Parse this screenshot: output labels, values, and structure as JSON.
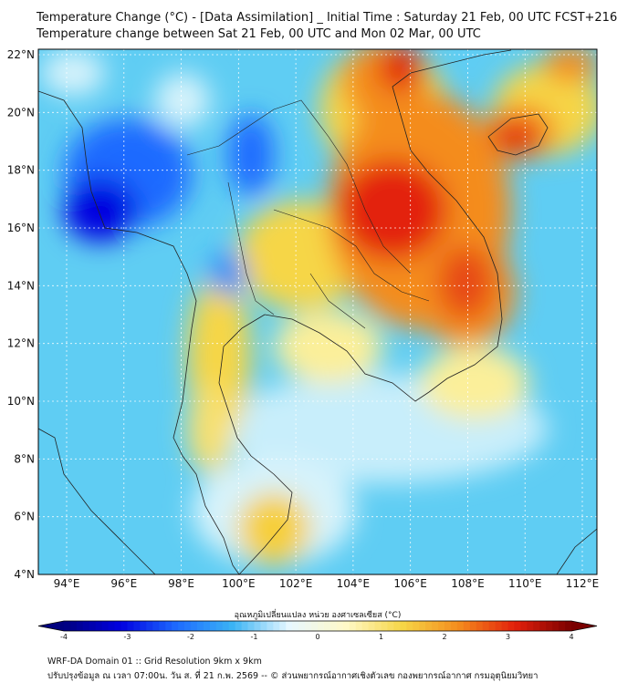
{
  "header": {
    "title_line1": "Temperature Change (°C) - [Data Assimilation] _ Initial Time : Saturday 21 Feb, 00 UTC FCST+216",
    "title_line2": "Temperature change between Sat 21 Feb, 00 UTC and Mon 02 Mar, 00 UTC"
  },
  "map": {
    "lat_labels": [
      "22°N",
      "20°N",
      "18°N",
      "16°N",
      "14°N",
      "12°N",
      "10°N",
      "8°N",
      "6°N",
      "4°N"
    ],
    "lon_labels": [
      "94°E",
      "96°E",
      "98°E",
      "100°E",
      "102°E",
      "104°E",
      "106°E",
      "108°E",
      "110°E",
      "112°E"
    ],
    "grid_lines": true
  },
  "colorbar": {
    "label": "อุณหภูมิเปลี่ยนแปลง หน่วย องศาเซลเซียส (°C)",
    "ticks": [
      "-4",
      "-3",
      "-2",
      "-1",
      "0",
      "1",
      "2",
      "3",
      "4"
    ],
    "colors": [
      "#00007f",
      "#0000e0",
      "#1e6bff",
      "#3bb4f5",
      "#e8f8ff",
      "#fff9c8",
      "#f6d646",
      "#f48c1e",
      "#e3200c",
      "#7a0000"
    ]
  },
  "footer": {
    "line1": "WRF-DA Domain 01 :: Grid Resolution 9km x 9km",
    "line2": "ปรับปรุงข้อมูล ณ เวลา 07:00น. วัน ส. ที่ 21 ก.พ. 2569 -- © ส่วนพยากรณ์อากาศเชิงตัวเลข กองพยากรณ์อากาศ กรมอุตุนิยมวิทยา"
  }
}
